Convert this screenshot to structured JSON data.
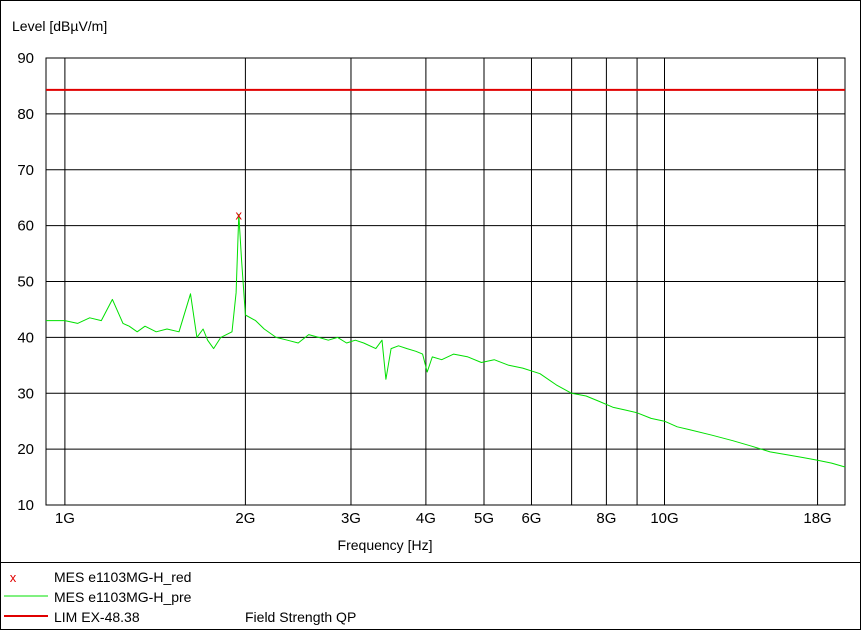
{
  "chart_data": {
    "type": "line",
    "ylabel": "Level [dBµV/m]",
    "xlabel": "Frequency [Hz]",
    "x_scale": "log",
    "xlim": [
      0.93,
      20.0
    ],
    "ylim": [
      10,
      90
    ],
    "y_ticks": [
      10,
      20,
      30,
      40,
      50,
      60,
      70,
      80,
      90
    ],
    "x_tick_labels": [
      {
        "value": 1,
        "label": "1G"
      },
      {
        "value": 2,
        "label": "2G"
      },
      {
        "value": 3,
        "label": "3G"
      },
      {
        "value": 4,
        "label": "4G"
      },
      {
        "value": 5,
        "label": "5G"
      },
      {
        "value": 6,
        "label": "6G"
      },
      {
        "value": 8,
        "label": "8G"
      },
      {
        "value": 10,
        "label": "10G"
      },
      {
        "value": 18,
        "label": "18G"
      }
    ],
    "x_gridlines": [
      1,
      2,
      3,
      4,
      5,
      6,
      7,
      8,
      9,
      10,
      18
    ],
    "limit_line": {
      "name": "LIM_EX-48.38",
      "value": 84.3,
      "color": "#e00000"
    },
    "marker": {
      "name": "MES_e1103MG-H_red",
      "x": 1.95,
      "y": 62.0,
      "symbol": "x",
      "color": "#e00000"
    },
    "series": [
      {
        "name": "MES_e1103MG-H_pre",
        "color": "#00e000",
        "x": [
          0.93,
          1.0,
          1.05,
          1.1,
          1.15,
          1.2,
          1.25,
          1.28,
          1.32,
          1.36,
          1.42,
          1.48,
          1.55,
          1.62,
          1.66,
          1.7,
          1.73,
          1.77,
          1.82,
          1.86,
          1.9,
          1.93,
          1.95,
          1.97,
          2.0,
          2.08,
          2.15,
          2.25,
          2.35,
          2.45,
          2.55,
          2.65,
          2.75,
          2.85,
          2.95,
          3.05,
          3.15,
          3.3,
          3.38,
          3.43,
          3.5,
          3.6,
          3.72,
          3.85,
          3.95,
          4.02,
          4.1,
          4.25,
          4.45,
          4.7,
          4.95,
          5.2,
          5.5,
          5.8,
          6.2,
          6.6,
          7.0,
          7.4,
          7.8,
          8.2,
          8.6,
          9.0,
          9.5,
          10.0,
          10.5,
          11.0,
          12.0,
          13.0,
          14.0,
          15.0,
          16.0,
          17.0,
          18.0,
          19.0,
          20.0
        ],
        "y": [
          43.0,
          43.0,
          42.5,
          43.5,
          43.0,
          46.8,
          42.5,
          42.0,
          41.0,
          42.0,
          41.0,
          41.5,
          41.0,
          47.8,
          40.0,
          41.5,
          39.5,
          38.0,
          40.0,
          40.5,
          41.0,
          48.0,
          62.0,
          54.0,
          44.0,
          43.0,
          41.5,
          40.0,
          39.5,
          39.0,
          40.5,
          40.0,
          39.5,
          40.0,
          39.0,
          39.5,
          39.0,
          38.0,
          39.5,
          32.5,
          38.0,
          38.5,
          38.0,
          37.5,
          37.0,
          33.8,
          36.5,
          36.0,
          37.0,
          36.5,
          35.5,
          36.0,
          35.0,
          34.5,
          33.5,
          31.5,
          30.0,
          29.5,
          28.5,
          27.5,
          27.0,
          26.5,
          25.5,
          25.0,
          24.0,
          23.5,
          22.5,
          21.5,
          20.5,
          19.5,
          19.0,
          18.5,
          18.0,
          17.5,
          16.8
        ]
      }
    ],
    "legend": [
      {
        "symbol": "x",
        "symbol_color": "#e00000",
        "label": "MES  e1103MG-H_red"
      },
      {
        "symbol": "line",
        "symbol_color": "#00e000",
        "label": "MES  e1103MG-H_pre"
      },
      {
        "symbol": "line",
        "symbol_color": "#e00000",
        "label": "LIM  EX-48.38",
        "description": "Field Strength QP"
      }
    ]
  }
}
